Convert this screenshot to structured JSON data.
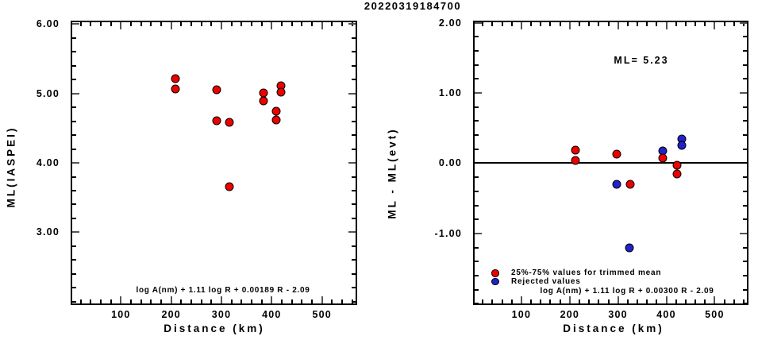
{
  "title": "20220319184700",
  "colors": {
    "accepted": "#ee0000",
    "rejected": "#2222cc",
    "axis": "#000000"
  },
  "legend": [
    {
      "series": "accepted",
      "label": "25%-75% values for trimmed mean"
    },
    {
      "series": "rejected",
      "label": "Rejected values"
    }
  ],
  "chart_data": [
    {
      "id": "left",
      "type": "scatter",
      "title": "",
      "xlabel": "Distance (km)",
      "ylabel": "ML(IASPEI)",
      "formula": "log A(nm) + 1.11 log R + 0.00189 R - 2.09",
      "xlim": [
        0,
        570
      ],
      "ylim": [
        1.95,
        6.05
      ],
      "xticks": [
        100,
        200,
        300,
        400,
        500
      ],
      "yticks": [
        3.0,
        4.0,
        5.0,
        6.0
      ],
      "x_minor_step": 20,
      "y_minor_step": 0.2,
      "grid": false,
      "zero_line": false,
      "points": [
        {
          "x": 208,
          "y": 5.21,
          "series": "accepted"
        },
        {
          "x": 208,
          "y": 5.07,
          "series": "accepted"
        },
        {
          "x": 290,
          "y": 5.05,
          "series": "accepted"
        },
        {
          "x": 290,
          "y": 4.61,
          "series": "accepted"
        },
        {
          "x": 316,
          "y": 4.58,
          "series": "accepted"
        },
        {
          "x": 316,
          "y": 3.66,
          "series": "accepted"
        },
        {
          "x": 383,
          "y": 5.01,
          "series": "accepted"
        },
        {
          "x": 383,
          "y": 4.89,
          "series": "accepted"
        },
        {
          "x": 409,
          "y": 4.74,
          "series": "accepted"
        },
        {
          "x": 409,
          "y": 4.62,
          "series": "accepted"
        },
        {
          "x": 418,
          "y": 5.11,
          "series": "accepted"
        },
        {
          "x": 418,
          "y": 5.02,
          "series": "accepted"
        }
      ]
    },
    {
      "id": "right",
      "type": "scatter",
      "title": "",
      "xlabel": "Distance (km)",
      "ylabel": "ML - ML(evt)",
      "annotation": "ML= 5.23",
      "formula": "log A(nm) + 1.11 log R + 0.00300 R - 2.09",
      "xlim": [
        0,
        570
      ],
      "ylim": [
        -2.02,
        2.03
      ],
      "xticks": [
        100,
        200,
        300,
        400,
        500
      ],
      "yticks": [
        -1.0,
        0.0,
        1.0,
        2.0
      ],
      "x_minor_step": 20,
      "y_minor_step": 0.2,
      "grid": false,
      "zero_line": true,
      "points": [
        {
          "x": 212,
          "y": 0.19,
          "series": "accepted"
        },
        {
          "x": 212,
          "y": 0.04,
          "series": "accepted"
        },
        {
          "x": 297,
          "y": 0.13,
          "series": "accepted"
        },
        {
          "x": 297,
          "y": -0.3,
          "series": "rejected"
        },
        {
          "x": 325,
          "y": -0.3,
          "series": "accepted"
        },
        {
          "x": 324,
          "y": -1.21,
          "series": "rejected"
        },
        {
          "x": 393,
          "y": 0.18,
          "series": "rejected"
        },
        {
          "x": 393,
          "y": 0.07,
          "series": "accepted"
        },
        {
          "x": 422,
          "y": -0.03,
          "series": "accepted"
        },
        {
          "x": 422,
          "y": -0.15,
          "series": "accepted"
        },
        {
          "x": 432,
          "y": 0.34,
          "series": "rejected"
        },
        {
          "x": 432,
          "y": 0.26,
          "series": "rejected"
        }
      ]
    }
  ]
}
